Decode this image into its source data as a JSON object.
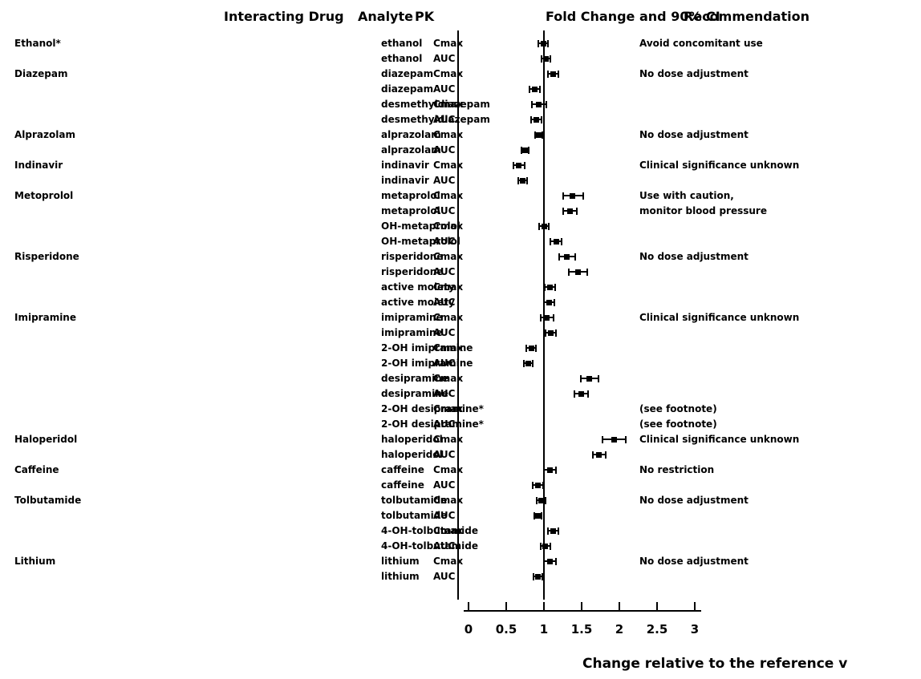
{
  "header": {
    "col_drug": "Interacting Drug",
    "col_analyte": "Analyte",
    "col_pk": "PK",
    "col_fold": "Fold Change and 90% CI",
    "col_recommendation": "Recommendation"
  },
  "axis": {
    "ticks": [
      0,
      0.5,
      1,
      1.5,
      2,
      2.5,
      3
    ],
    "labels": [
      "0",
      "0.5",
      "1",
      "1.5",
      "2",
      "2.5",
      "3"
    ]
  },
  "chart_data": {
    "type": "forest",
    "xlabel": "Change relative to the reference v",
    "xlim": [
      0,
      3
    ],
    "reference_line": 1,
    "colors": {
      "foreground": "#000000",
      "background": "#ffffff"
    },
    "rows": [
      {
        "drug": "Ethanol*",
        "analyte": "ethanol",
        "pk": "Cmax",
        "value": 0.99,
        "lo": 0.93,
        "hi": 1.05,
        "note": "Avoid concomitant use"
      },
      {
        "analyte": "ethanol",
        "pk": "AUC",
        "value": 1.03,
        "lo": 0.97,
        "hi": 1.09
      },
      {
        "drug": "Diazepam",
        "analyte": "diazepam",
        "pk": "Cmax",
        "value": 1.12,
        "lo": 1.05,
        "hi": 1.19,
        "note": "No dose adjustment"
      },
      {
        "analyte": "diazepam",
        "pk": "AUC",
        "value": 0.88,
        "lo": 0.81,
        "hi": 0.95
      },
      {
        "analyte": "desmethyldiazepam",
        "pk": "Cmax",
        "value": 0.93,
        "lo": 0.84,
        "hi": 1.03
      },
      {
        "analyte": "desmethyldiazepam",
        "pk": "AUC",
        "value": 0.9,
        "lo": 0.83,
        "hi": 0.97
      },
      {
        "drug": "Alprazolam",
        "analyte": "alprazolam",
        "pk": "Cmax",
        "value": 0.93,
        "lo": 0.88,
        "hi": 0.98,
        "note": "No dose adjustment"
      },
      {
        "analyte": "alprazolam",
        "pk": "AUC",
        "value": 0.75,
        "lo": 0.7,
        "hi": 0.8
      },
      {
        "drug": "Indinavir",
        "analyte": "indinavir",
        "pk": "Cmax",
        "value": 0.67,
        "lo": 0.6,
        "hi": 0.74,
        "note": "Clinical significance unknown"
      },
      {
        "analyte": "indinavir",
        "pk": "AUC",
        "value": 0.72,
        "lo": 0.66,
        "hi": 0.78
      },
      {
        "drug": "Metoprolol",
        "analyte": "metaprolol",
        "pk": "Cmax",
        "value": 1.38,
        "lo": 1.26,
        "hi": 1.52,
        "note": "Use with caution,"
      },
      {
        "analyte": "metaprolol",
        "pk": "AUC",
        "value": 1.35,
        "lo": 1.26,
        "hi": 1.44,
        "note": "monitor blood pressure"
      },
      {
        "analyte": "OH-metaprolol",
        "pk": "Cmax",
        "value": 1.0,
        "lo": 0.94,
        "hi": 1.06
      },
      {
        "analyte": "OH-metaprolol",
        "pk": "AUC",
        "value": 1.16,
        "lo": 1.09,
        "hi": 1.23
      },
      {
        "drug": "Risperidone",
        "analyte": "risperidone",
        "pk": "Cmax",
        "value": 1.3,
        "lo": 1.2,
        "hi": 1.41,
        "note": "No dose adjustment"
      },
      {
        "analyte": "risperidone",
        "pk": "AUC",
        "value": 1.45,
        "lo": 1.33,
        "hi": 1.57
      },
      {
        "analyte": "active moiety",
        "pk": "Cmax",
        "value": 1.08,
        "lo": 1.01,
        "hi": 1.15
      },
      {
        "analyte": "active moiety",
        "pk": "AUC",
        "value": 1.07,
        "lo": 1.0,
        "hi": 1.14
      },
      {
        "drug": "Imipramine",
        "analyte": "imipramine",
        "pk": "Cmax",
        "value": 1.04,
        "lo": 0.96,
        "hi": 1.13,
        "note": "Clinical significance unknown"
      },
      {
        "analyte": "imipramine",
        "pk": "AUC",
        "value": 1.09,
        "lo": 1.02,
        "hi": 1.16
      },
      {
        "analyte": "2-OH imipramine",
        "pk": "Cmax",
        "value": 0.83,
        "lo": 0.77,
        "hi": 0.89
      },
      {
        "analyte": "2-OH imipramine",
        "pk": "AUC",
        "value": 0.79,
        "lo": 0.73,
        "hi": 0.85
      },
      {
        "analyte": "desipramine",
        "pk": "Cmax",
        "value": 1.6,
        "lo": 1.49,
        "hi": 1.72
      },
      {
        "analyte": "desipramine",
        "pk": "AUC",
        "value": 1.49,
        "lo": 1.4,
        "hi": 1.58
      },
      {
        "analyte": "2-OH desipramine*",
        "pk": "Cmax",
        "value": null,
        "note": "(see footnote)"
      },
      {
        "analyte": "2-OH desipramine*",
        "pk": "AUC",
        "value": null,
        "note": "(see footnote)"
      },
      {
        "drug": "Haloperidol",
        "analyte": "haloperidol",
        "pk": "Cmax",
        "value": 1.93,
        "lo": 1.78,
        "hi": 2.08,
        "note": "Clinical significance unknown"
      },
      {
        "analyte": "haloperidol",
        "pk": "AUC",
        "value": 1.73,
        "lo": 1.65,
        "hi": 1.82
      },
      {
        "drug": "Caffeine",
        "analyte": "caffeine",
        "pk": "Cmax",
        "value": 1.08,
        "lo": 1.0,
        "hi": 1.16,
        "note": "No restriction"
      },
      {
        "analyte": "caffeine",
        "pk": "AUC",
        "value": 0.92,
        "lo": 0.85,
        "hi": 0.99
      },
      {
        "drug": "Tolbutamide",
        "analyte": "tolbutamide",
        "pk": "Cmax",
        "value": 0.96,
        "lo": 0.9,
        "hi": 1.02,
        "note": "No dose adjustment"
      },
      {
        "analyte": "tolbutamide",
        "pk": "AUC",
        "value": 0.92,
        "lo": 0.87,
        "hi": 0.97
      },
      {
        "analyte": "4-OH-tolbutamide",
        "pk": "Cmax",
        "value": 1.12,
        "lo": 1.05,
        "hi": 1.19
      },
      {
        "analyte": "4-OH-tolbutamide",
        "pk": "AUC",
        "value": 1.02,
        "lo": 0.96,
        "hi": 1.08
      },
      {
        "drug": "Lithium",
        "analyte": "lithium",
        "pk": "Cmax",
        "value": 1.08,
        "lo": 1.0,
        "hi": 1.16,
        "note": "No dose adjustment"
      },
      {
        "analyte": "lithium",
        "pk": "AUC",
        "value": 0.92,
        "lo": 0.86,
        "hi": 0.98
      }
    ]
  }
}
